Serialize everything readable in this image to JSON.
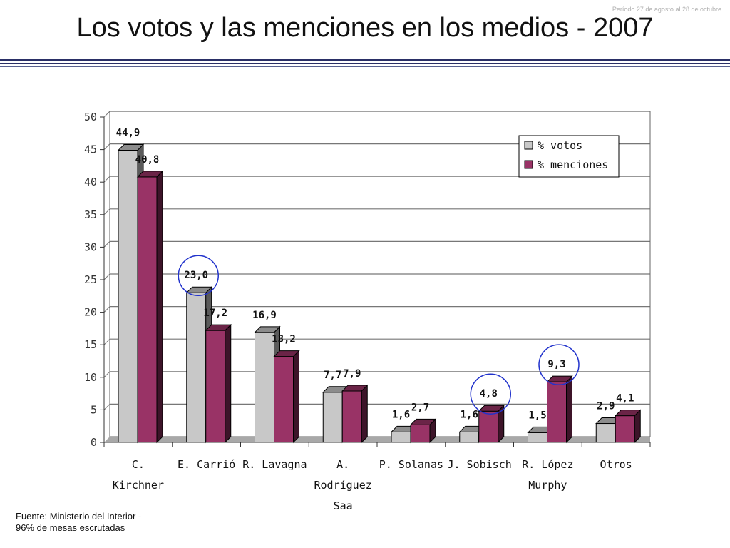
{
  "header": {
    "period": "Período 27 de agosto al 28 de octubre",
    "title": "Los votos y las menciones en los medios - 2007"
  },
  "footer": {
    "source": "Fuente: Ministerio del Interior  -\n96% de mesas escrutadas"
  },
  "colors": {
    "votos": "#c8c8c8",
    "menciones": "#993366",
    "highlight": "#2233cc"
  },
  "chart_data": {
    "type": "bar",
    "title": "",
    "xlabel": "",
    "ylabel": "",
    "ylim": [
      0,
      50
    ],
    "yticks": [
      0,
      5,
      10,
      15,
      20,
      25,
      30,
      35,
      40,
      45,
      50
    ],
    "grid": true,
    "legend_position": "top-right",
    "categories": [
      [
        "C.",
        "Kirchner"
      ],
      [
        "E. Carrió"
      ],
      [
        "R. Lavagna"
      ],
      [
        "A.",
        "Rodríguez",
        "Saa"
      ],
      [
        "P. Solanas"
      ],
      [
        "J. Sobisch"
      ],
      [
        "R. López",
        "Murphy"
      ],
      [
        "Otros"
      ]
    ],
    "series": [
      {
        "name": "% votos",
        "values": [
          44.9,
          23.0,
          16.9,
          7.7,
          1.6,
          1.6,
          1.5,
          2.9
        ],
        "labels": [
          "44,9",
          "23,0",
          "16,9",
          "7,7",
          "1,6",
          "1,6",
          "1,5",
          "2,9"
        ]
      },
      {
        "name": "% menciones",
        "values": [
          40.8,
          17.2,
          13.2,
          7.9,
          2.7,
          4.8,
          9.3,
          4.1
        ],
        "labels": [
          "40,8",
          "17,2",
          "13,2",
          "7,9",
          "2,7",
          "4,8",
          "9,3",
          "4,1"
        ]
      }
    ],
    "highlighted": [
      {
        "series": 0,
        "category": 1
      },
      {
        "series": 1,
        "category": 5
      },
      {
        "series": 1,
        "category": 6
      }
    ]
  }
}
